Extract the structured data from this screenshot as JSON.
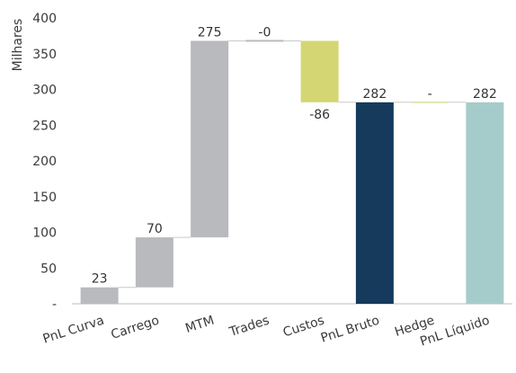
{
  "chart_data": {
    "type": "bar",
    "subtype": "waterfall",
    "ylabel": "Milhares",
    "ylim": [
      0,
      400
    ],
    "yticks": [
      0,
      50,
      100,
      150,
      200,
      250,
      300,
      350,
      400
    ],
    "ytick_labels": [
      "-",
      "50",
      "100",
      "150",
      "200",
      "250",
      "300",
      "350",
      "400"
    ],
    "grid": false,
    "categories": [
      "PnL Curva",
      "Carrego",
      "MTM",
      "Trades",
      "Custos",
      "PnL Bruto",
      "Hedge",
      "PnL Líquido"
    ],
    "values": [
      23,
      70,
      275,
      0,
      -86,
      282,
      0,
      282
    ],
    "bar_kind": [
      "delta",
      "delta",
      "delta",
      "delta",
      "delta",
      "total",
      "delta",
      "total"
    ],
    "data_labels": [
      "23",
      "70",
      "275",
      "-0",
      "-86",
      "282",
      "-",
      "282"
    ],
    "colors": [
      "#b9babd",
      "#b9babd",
      "#b9babd",
      "#b9babd",
      "#d4d673",
      "#153a5c",
      "#e2e4b0",
      "#a5cccb"
    ]
  }
}
